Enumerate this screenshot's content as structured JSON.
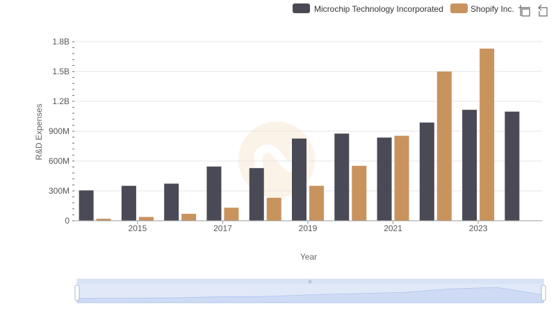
{
  "chart_data": {
    "type": "bar",
    "categories": [
      "2014",
      "2015",
      "2016",
      "2017",
      "2018",
      "2019",
      "2020",
      "2021",
      "2022",
      "2023",
      "2024"
    ],
    "x_tick_labels": [
      "2015",
      "2017",
      "2019",
      "2021",
      "2023"
    ],
    "series": [
      {
        "name": "Microchip Technology Incorporated",
        "color": "#4a4a57",
        "values": [
          305,
          351,
          373,
          545,
          529,
          826,
          876,
          836,
          987,
          1115,
          1097
        ]
      },
      {
        "name": "Shopify Inc.",
        "color": "#c9935e",
        "values": [
          20,
          38,
          70,
          131,
          231,
          351,
          552,
          854,
          1500,
          1730,
          null
        ]
      }
    ],
    "value_unit": "millions",
    "y_ticks": [
      0,
      300,
      600,
      900,
      1200,
      1500,
      1800
    ],
    "y_tick_labels": [
      "0",
      "300M",
      "600M",
      "900M",
      "1.2B",
      "1.5B",
      "1.8B"
    ],
    "ylim": [
      0,
      1800
    ],
    "xlabel": "Year",
    "ylabel": "R&D Expenses",
    "grid": true,
    "legend_position": "top-right"
  },
  "toolbar": {
    "icons": [
      "zoom-icon",
      "restore-icon"
    ]
  },
  "data_zoom": {
    "range_start_fraction": 0,
    "range_end_fraction": 1,
    "handle_label": "III"
  }
}
